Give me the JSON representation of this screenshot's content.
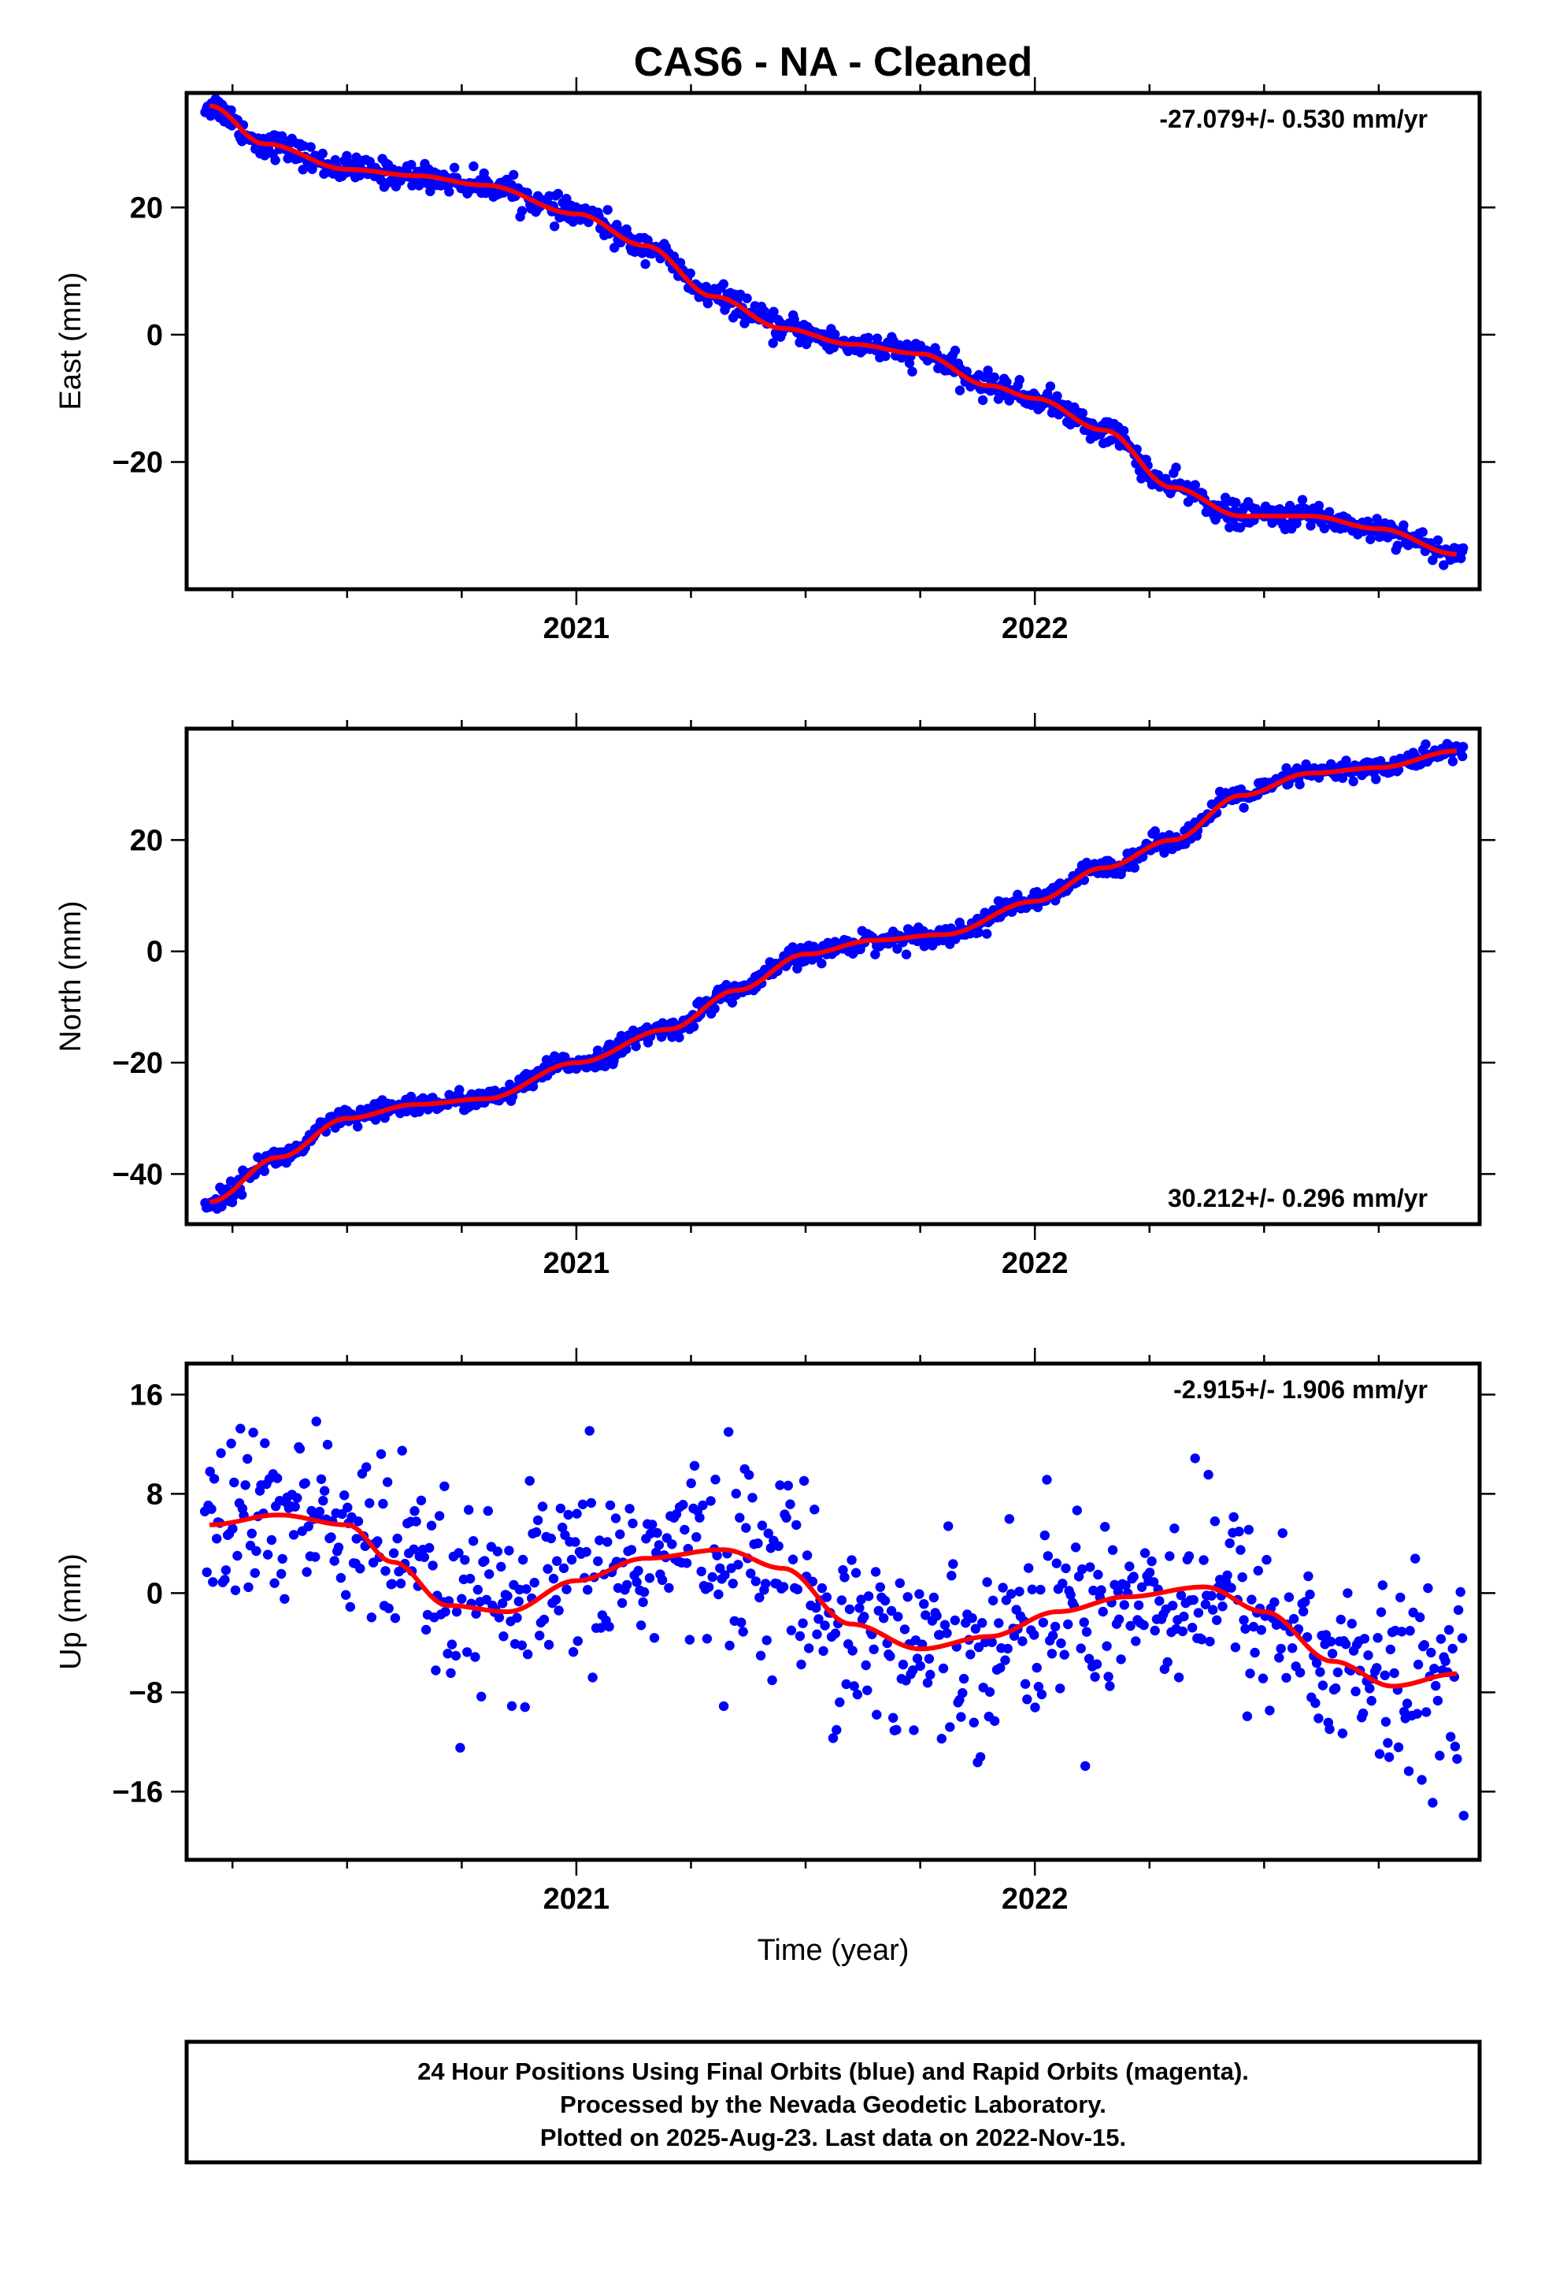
{
  "title": "CAS6  - NA - Cleaned",
  "xlabel": "Time (year)",
  "footer": {
    "line1": "24 Hour Positions Using Final Orbits (blue) and Rapid Orbits (magenta).",
    "line2": "Processed by the Nevada Geodetic Laboratory.",
    "line3": "Plotted on 2025-Aug-23. Last data on 2022-Nov-15."
  },
  "colors": {
    "points": "#0000ff",
    "fit": "#ff0000",
    "frame": "#000000"
  },
  "chart_data": [
    {
      "type": "scatter",
      "ylabel": "East (mm)",
      "rate": "-27.079+/- 0.530 mm/yr",
      "rate_position": "top-right",
      "xlim": [
        2020.15,
        2022.97
      ],
      "ylim": [
        -40,
        38
      ],
      "x_ticks": [
        2021,
        2022
      ],
      "y_ticks": [
        -20,
        0,
        20
      ],
      "grid": false,
      "series": [
        {
          "name": "Final Orbits (blue)",
          "kind": "points",
          "noise": 1.0,
          "trend": {
            "x": [
              2020.2,
              2020.32,
              2020.5,
              2020.65,
              2020.8,
              2021.0,
              2021.15,
              2021.3,
              2021.45,
              2021.6,
              2021.75,
              2021.9,
              2022.0,
              2022.15,
              2022.3,
              2022.45,
              2022.6,
              2022.75,
              2022.92
            ],
            "y": [
              36,
              30,
              26,
              25,
              23.5,
              19,
              14,
              6,
              1,
              -1.5,
              -3,
              -8,
              -10,
              -15,
              -24,
              -28.5,
              -28.5,
              -30.5,
              -34.5
            ]
          }
        },
        {
          "name": "Fit",
          "kind": "line",
          "x": [
            2020.2,
            2020.32,
            2020.5,
            2020.65,
            2020.8,
            2021.0,
            2021.15,
            2021.3,
            2021.45,
            2021.6,
            2021.75,
            2021.9,
            2022.0,
            2022.15,
            2022.3,
            2022.45,
            2022.6,
            2022.75,
            2022.92
          ],
          "y": [
            36,
            30,
            26,
            25,
            23.5,
            19,
            14,
            6,
            1,
            -1.5,
            -3,
            -8,
            -10,
            -15,
            -24,
            -28.5,
            -28.5,
            -30.5,
            -34.5
          ]
        }
      ]
    },
    {
      "type": "scatter",
      "ylabel": "North (mm)",
      "rate": "30.212+/- 0.296 mm/yr",
      "rate_position": "bottom-right",
      "xlim": [
        2020.15,
        2022.97
      ],
      "ylim": [
        -49,
        40
      ],
      "x_ticks": [
        2021,
        2022
      ],
      "y_ticks": [
        -40,
        -20,
        0,
        20
      ],
      "grid": false,
      "series": [
        {
          "name": "Final Orbits (blue)",
          "kind": "points",
          "noise": 0.9,
          "trend": {
            "x": [
              2020.2,
              2020.35,
              2020.5,
              2020.65,
              2020.8,
              2021.0,
              2021.2,
              2021.35,
              2021.5,
              2021.65,
              2021.8,
              2022.0,
              2022.15,
              2022.3,
              2022.45,
              2022.6,
              2022.75,
              2022.92
            ],
            "y": [
              -45,
              -37,
              -30,
              -27.5,
              -26.5,
              -20,
              -14,
              -7,
              -0.5,
              2,
              3,
              9,
              15,
              20,
              28,
              32,
              33,
              36
            ]
          }
        },
        {
          "name": "Fit",
          "kind": "line",
          "x": [
            2020.2,
            2020.35,
            2020.5,
            2020.65,
            2020.8,
            2021.0,
            2021.2,
            2021.35,
            2021.5,
            2021.65,
            2021.8,
            2022.0,
            2022.15,
            2022.3,
            2022.45,
            2022.6,
            2022.75,
            2022.92
          ],
          "y": [
            -45,
            -37,
            -30,
            -27.5,
            -26.5,
            -20,
            -14,
            -7,
            -0.5,
            2,
            3,
            9,
            15,
            20,
            28,
            32,
            33,
            36
          ]
        }
      ]
    },
    {
      "type": "scatter",
      "ylabel": "Up (mm)",
      "rate": "-2.915+/- 1.906 mm/yr",
      "rate_position": "top-right",
      "xlim": [
        2020.15,
        2022.97
      ],
      "ylim": [
        -21.5,
        18.5
      ],
      "x_ticks": [
        2021,
        2022
      ],
      "y_ticks": [
        -16,
        -8,
        0,
        8,
        16
      ],
      "grid": false,
      "series": [
        {
          "name": "Final Orbits (blue)",
          "kind": "points",
          "noise": 3.8,
          "trend": {
            "x": [
              2020.2,
              2020.35,
              2020.5,
              2020.6,
              2020.72,
              2020.85,
              2021.0,
              2021.15,
              2021.32,
              2021.45,
              2021.6,
              2021.75,
              2021.9,
              2022.05,
              2022.2,
              2022.37,
              2022.5,
              2022.65,
              2022.78,
              2022.92
            ],
            "y": [
              5.5,
              6.3,
              5.5,
              2.5,
              -1,
              -1.5,
              1,
              2.8,
              3.5,
              2,
              -2.5,
              -4.5,
              -3.5,
              -1.5,
              -0.3,
              0.5,
              -1.5,
              -5.5,
              -7.5,
              -6.5
            ]
          }
        },
        {
          "name": "Fit",
          "kind": "line",
          "x": [
            2020.2,
            2020.35,
            2020.5,
            2020.6,
            2020.72,
            2020.85,
            2021.0,
            2021.15,
            2021.32,
            2021.45,
            2021.6,
            2021.75,
            2021.9,
            2022.05,
            2022.2,
            2022.37,
            2022.5,
            2022.65,
            2022.78,
            2022.92
          ],
          "y": [
            5.5,
            6.3,
            5.5,
            2.5,
            -1,
            -1.5,
            1,
            2.8,
            3.5,
            2,
            -2.5,
            -4.5,
            -3.5,
            -1.5,
            -0.3,
            0.5,
            -1.5,
            -5.5,
            -7.5,
            -6.5
          ]
        }
      ]
    }
  ]
}
